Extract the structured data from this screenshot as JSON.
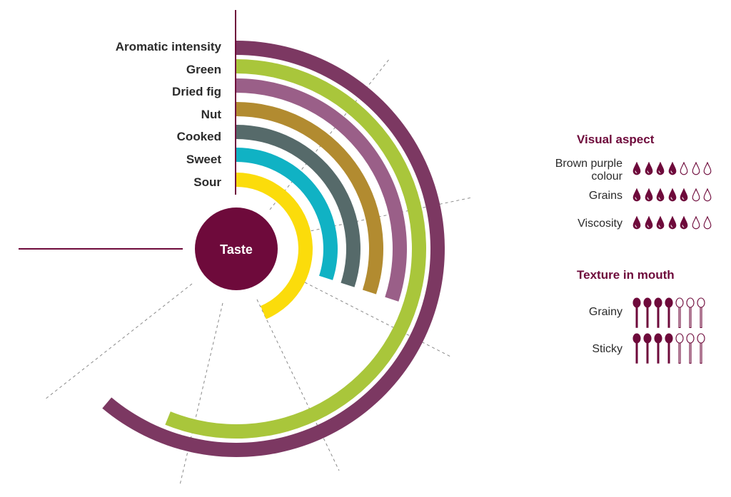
{
  "center": {
    "label": "Taste"
  },
  "taste_attributes": [
    {
      "label": "Aromatic intensity",
      "color": "#7c3862",
      "sweep_deg": 220
    },
    {
      "label": "Green",
      "color": "#a9c63b",
      "sweep_deg": 202
    },
    {
      "label": "Dried fig",
      "color": "#9a5f88",
      "sweep_deg": 108
    },
    {
      "label": "Nut",
      "color": "#b28b30",
      "sweep_deg": 108
    },
    {
      "label": "Cooked",
      "color": "#566a6a",
      "sweep_deg": 108
    },
    {
      "label": "Sweet",
      "color": "#10b2c4",
      "sweep_deg": 108
    },
    {
      "label": "Sour",
      "color": "#fbdc0b",
      "sweep_deg": 157
    }
  ],
  "visual_aspect": {
    "title": "Visual aspect",
    "max": 7,
    "rows": [
      {
        "label": "Brown purple colour",
        "value": 4
      },
      {
        "label": "Grains",
        "value": 5
      },
      {
        "label": "Viscosity",
        "value": 5
      }
    ]
  },
  "texture_in_mouth": {
    "title": "Texture in mouth",
    "max": 7,
    "rows": [
      {
        "label": "Grainy",
        "value": 4
      },
      {
        "label": "Sticky",
        "value": 4
      }
    ]
  },
  "colors": {
    "accent": "#6e0a3b"
  }
}
